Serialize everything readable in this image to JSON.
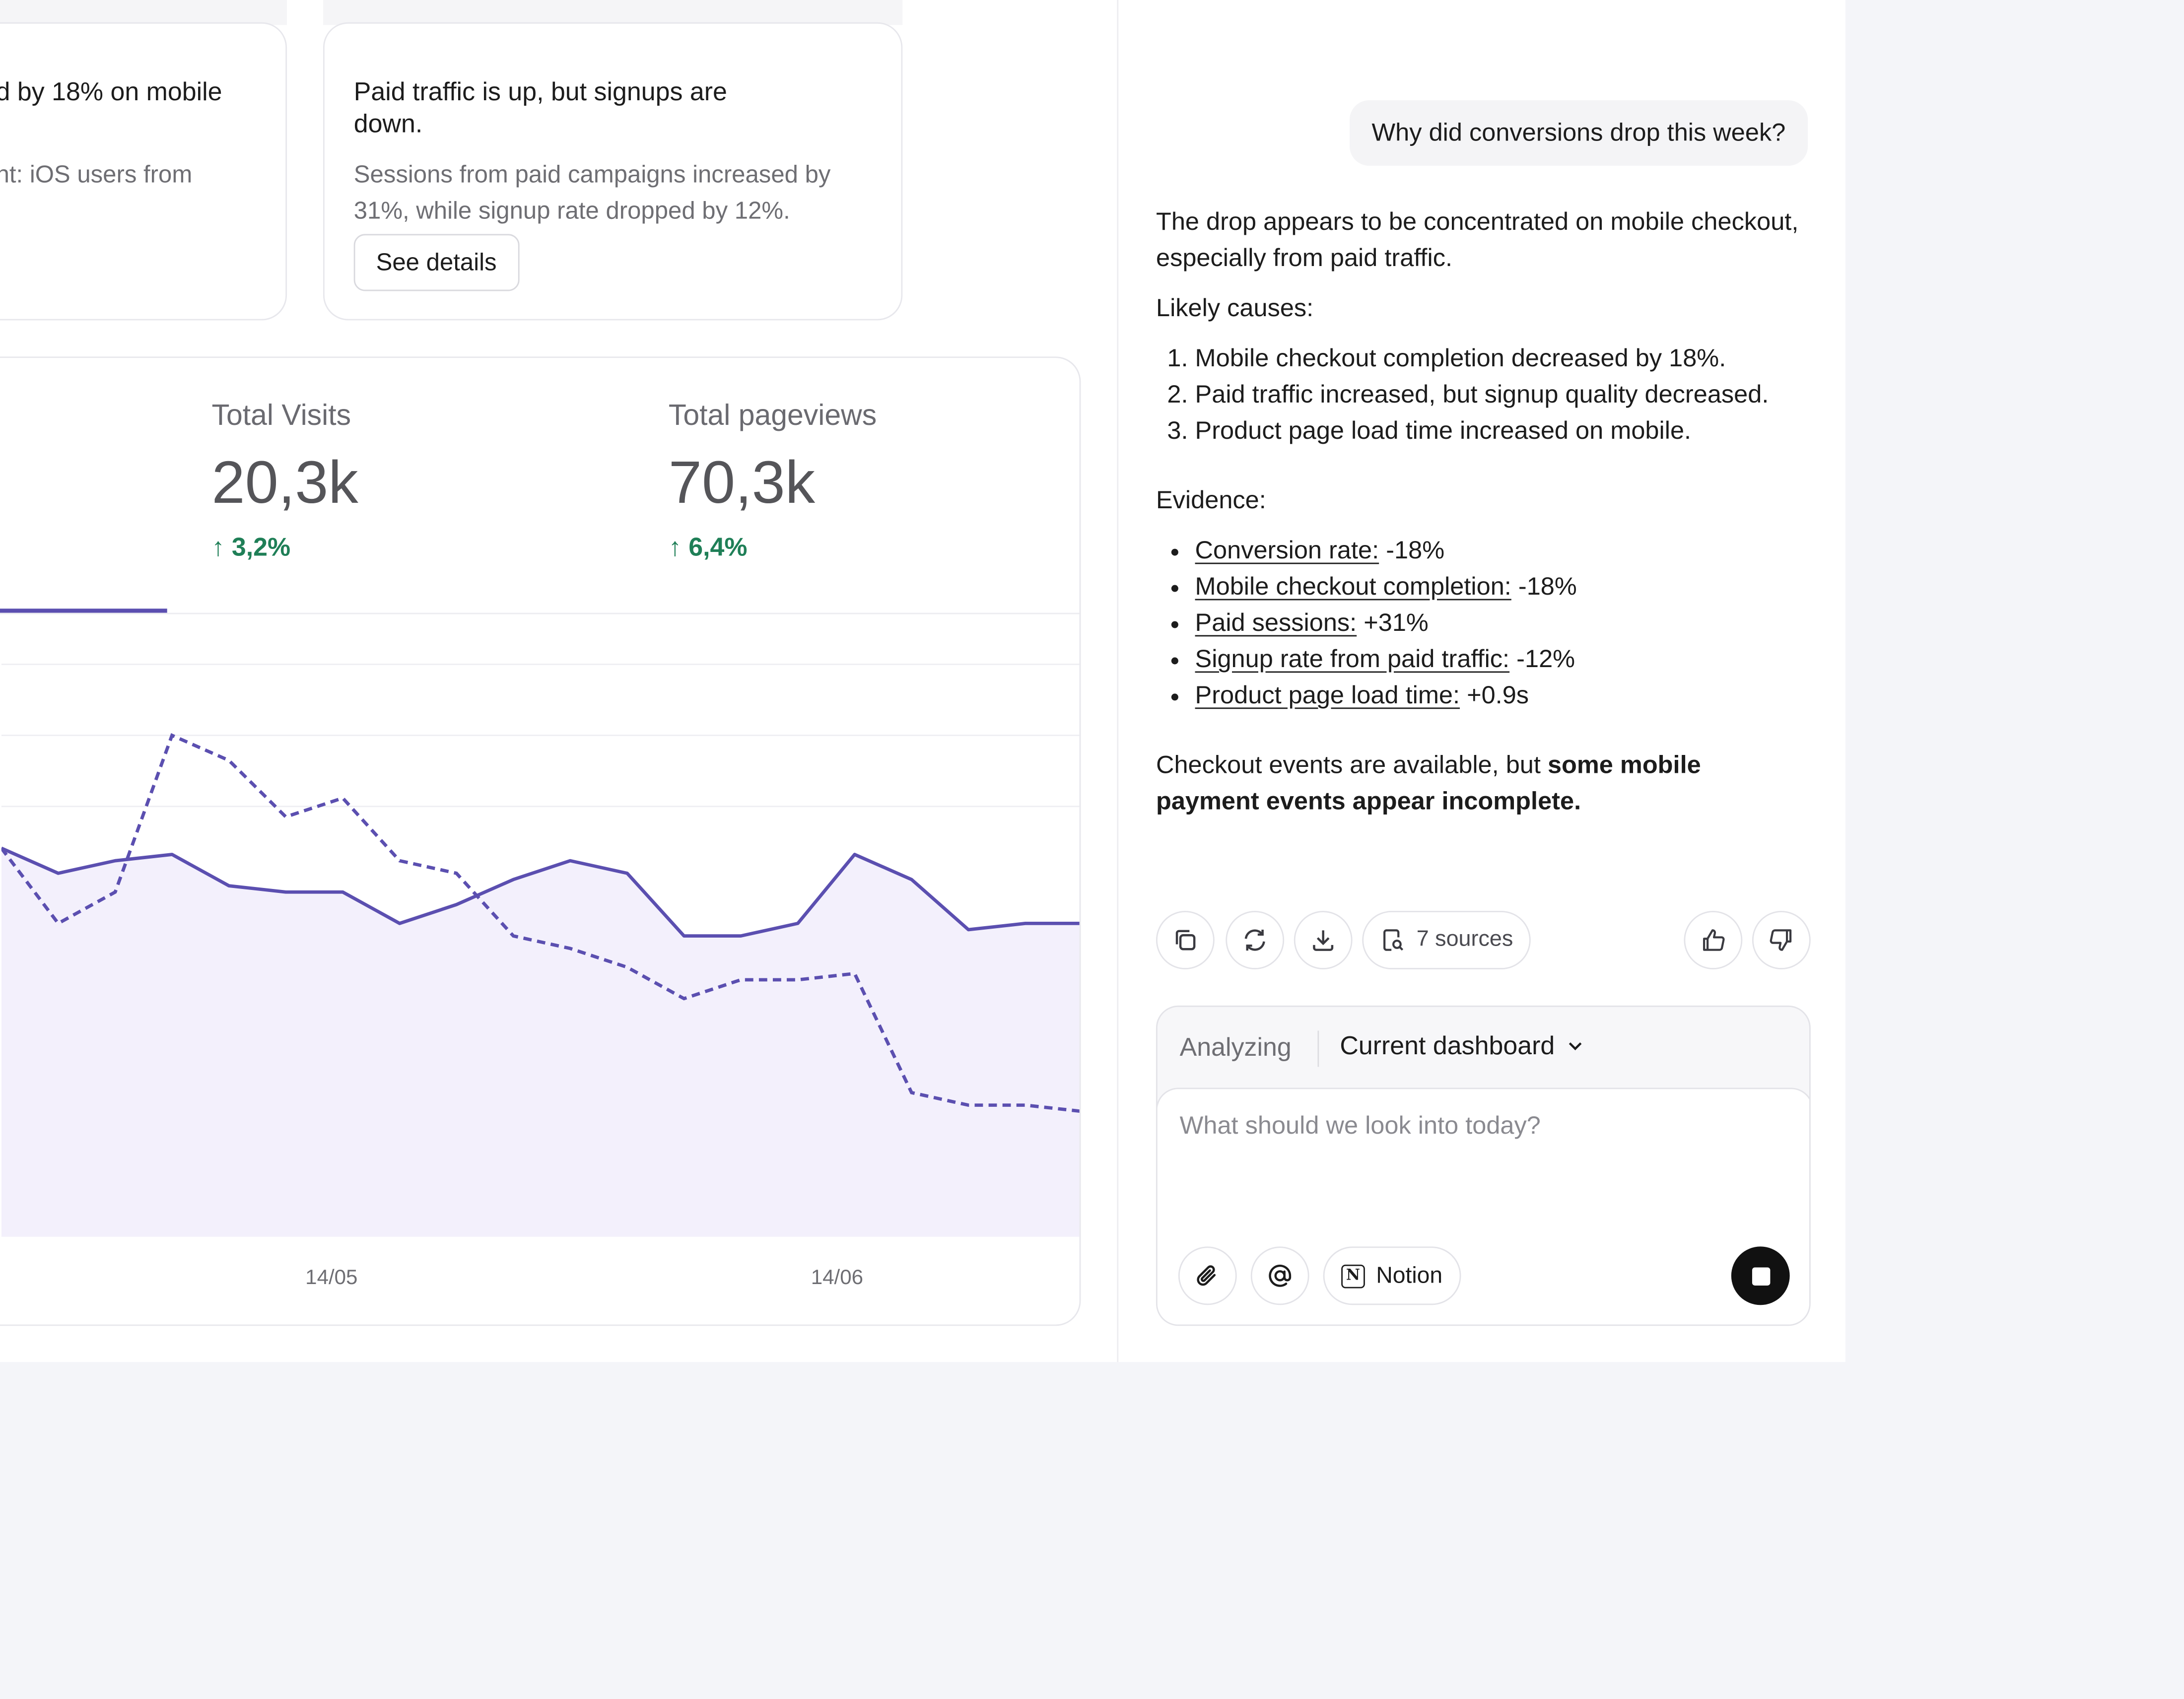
{
  "insights": [
    {
      "title": "d by 18% on mobile",
      "text": "nt: iOS users from"
    },
    {
      "title": "Paid traffic is up, but signups are down.",
      "text": "Sessions from paid campaigns increased by 31%, while signup rate dropped by 12%.",
      "button_label": "See details"
    }
  ],
  "stats": [
    {
      "label": "Total Visits",
      "value": "20,3k",
      "delta": "↑ 3,2%"
    },
    {
      "label": "Total pageviews",
      "value": "70,3k",
      "delta": "↑ 6,4%"
    }
  ],
  "chart_data": {
    "type": "line",
    "x_tick_labels": [
      "14/05",
      "14/06"
    ],
    "series": [
      {
        "style": "solid",
        "fill": "area",
        "color": "#5b4fb0",
        "values": [
          62,
          58,
          60,
          61,
          56,
          55,
          55,
          50,
          53,
          57,
          60,
          58,
          48,
          48,
          50,
          61,
          57,
          49,
          50,
          50
        ]
      },
      {
        "style": "dashed",
        "color": "#5b4fb0",
        "values": [
          62,
          50,
          55,
          80,
          76,
          67,
          70,
          60,
          58,
          48,
          46,
          43,
          38,
          41,
          41,
          42,
          23,
          21,
          21,
          20
        ]
      }
    ],
    "colors": {
      "line": "#5b4fb0",
      "area_fill": "#f3f0fc"
    }
  },
  "chat": {
    "user_message": "Why did conversions drop this week?",
    "intro": "The drop appears to be concentrated on mobile checkout, especially from paid traffic.",
    "causes_heading": "Likely causes:",
    "causes": [
      "Mobile checkout completion decreased by 18%.",
      "Paid traffic increased, but signup quality decreased.",
      "Product page load time increased on mobile."
    ],
    "evidence_heading": "Evidence:",
    "evidence": [
      {
        "label": "Conversion rate:",
        "value": " -18%"
      },
      {
        "label": "Mobile checkout completion:",
        "value": " -18%"
      },
      {
        "label": "Paid sessions:",
        "value": " +31%"
      },
      {
        "label": "Signup rate from paid traffic:",
        "value": " -12%"
      },
      {
        "label": "Product page load time:",
        "value": " +0.9s"
      }
    ],
    "closing_plain": "Checkout events are available, but ",
    "closing_strong": "some mobile payment events appear incomplete.",
    "sources_label": "7 sources"
  },
  "composer": {
    "analyzing_label": "Analyzing",
    "scope": "Current dashboard",
    "placeholder": "What should we look into today?",
    "notion_label": "Notion",
    "notion_glyph": "N"
  }
}
